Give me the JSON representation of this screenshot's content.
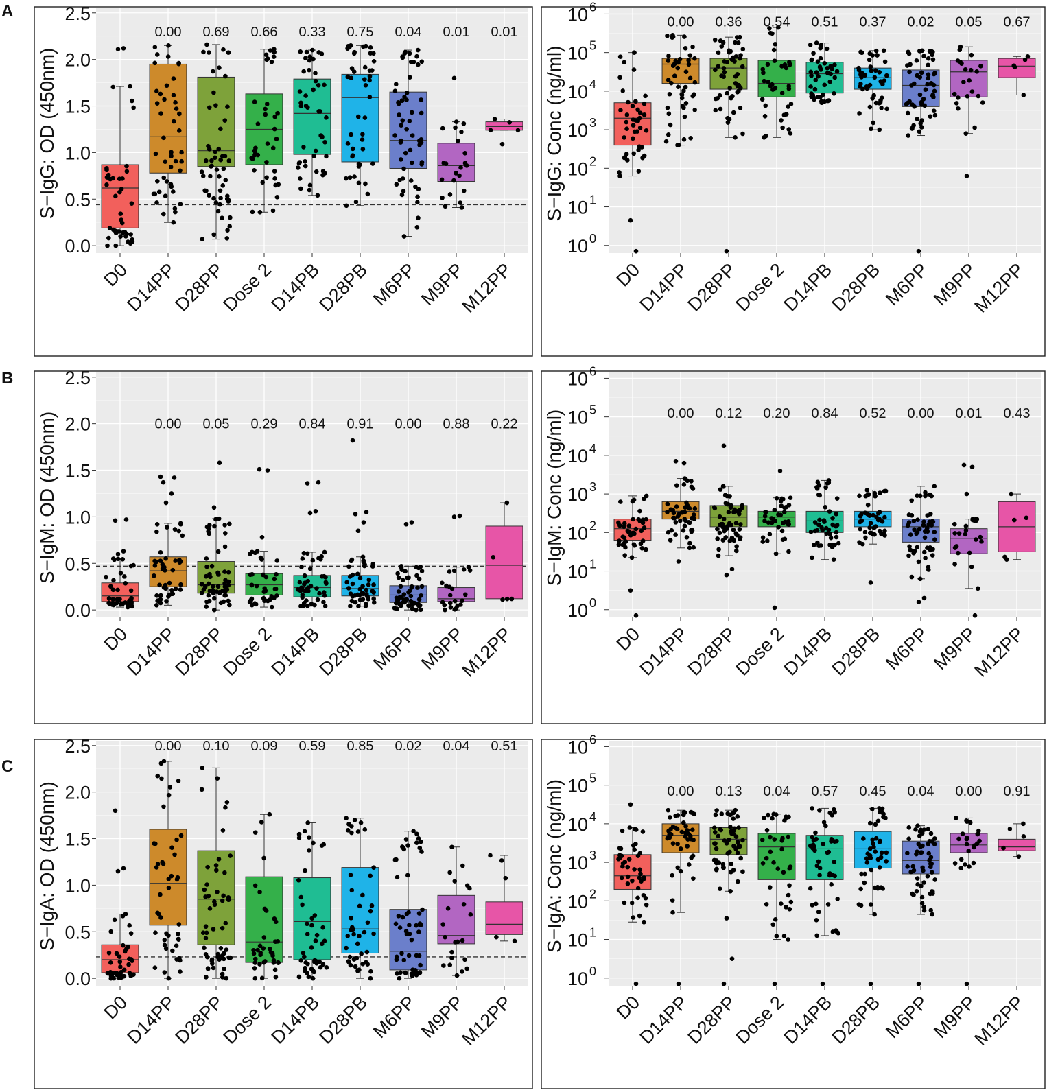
{
  "figure": {
    "row_letters": [
      "A",
      "B",
      "C"
    ],
    "group_colors": [
      "#f2605c",
      "#cd8a2b",
      "#7ea23a",
      "#34b04a",
      "#1fbd93",
      "#1fb3e8",
      "#6b7fcb",
      "#b266c2",
      "#e755a7"
    ]
  },
  "chart_data": [
    {
      "id": "A-left",
      "type": "box",
      "title": "",
      "ylabel": "S−IgG: OD (450nm)",
      "xlabel": "",
      "scale": "linear",
      "ylim": [
        -0.08,
        2.55
      ],
      "yticks": [
        0.0,
        0.5,
        1.0,
        1.5,
        2.0,
        2.5
      ],
      "ytick_labels": [
        "0.0",
        "0.5",
        "1.0",
        "1.5",
        "2.0",
        "2.5"
      ],
      "threshold": 0.44,
      "categories": [
        "D0",
        "D14PP",
        "D28PP",
        "Dose 2",
        "D14PB",
        "D28PB",
        "M6PP",
        "M9PP",
        "M12PP"
      ],
      "pvalues": [
        "",
        "0.00",
        "0.69",
        "0.66",
        "0.33",
        "0.75",
        "0.04",
        "0.01",
        "0.01"
      ],
      "pvalue_level": 2.3,
      "stats": [
        {
          "min": 0.0,
          "q1": 0.19,
          "median": 0.62,
          "q3": 0.87,
          "max": 1.71,
          "n": 42,
          "outliers": [
            2.11,
            2.12
          ]
        },
        {
          "min": 0.25,
          "q1": 0.78,
          "median": 1.17,
          "q3": 1.95,
          "max": 2.15,
          "n": 46,
          "outliers": []
        },
        {
          "min": 0.07,
          "q1": 0.85,
          "median": 1.02,
          "q3": 1.81,
          "max": 2.16,
          "n": 56,
          "outliers": []
        },
        {
          "min": 0.36,
          "q1": 0.87,
          "median": 1.25,
          "q3": 1.63,
          "max": 2.11,
          "n": 38,
          "outliers": []
        },
        {
          "min": 0.54,
          "q1": 0.98,
          "median": 1.42,
          "q3": 1.79,
          "max": 2.1,
          "n": 46,
          "outliers": []
        },
        {
          "min": 0.43,
          "q1": 0.9,
          "median": 1.59,
          "q3": 1.84,
          "max": 2.15,
          "n": 46,
          "outliers": []
        },
        {
          "min": 0.1,
          "q1": 0.83,
          "median": 1.13,
          "q3": 1.65,
          "max": 2.1,
          "n": 56,
          "outliers": []
        },
        {
          "min": 0.41,
          "q1": 0.69,
          "median": 0.86,
          "q3": 1.1,
          "max": 1.33,
          "n": 22,
          "outliers": [
            1.8
          ]
        },
        {
          "min": 1.24,
          "q1": 1.24,
          "median": 1.28,
          "q3": 1.33,
          "max": 1.36,
          "n": 4,
          "outliers": [
            1.09
          ]
        }
      ]
    },
    {
      "id": "A-right",
      "type": "box",
      "title": "",
      "ylabel": "S−IgG: Conc (ng/ml)",
      "xlabel": "",
      "scale": "log10",
      "ylim": [
        -0.2,
        6.15
      ],
      "yticks": [
        0,
        1,
        2,
        3,
        4,
        5,
        6
      ],
      "ytick_labels": [
        "10",
        "10",
        "10",
        "10",
        "10",
        "10",
        "10"
      ],
      "ytick_exponents": [
        "0",
        "1",
        "2",
        "3",
        "4",
        "5",
        "6"
      ],
      "threshold": null,
      "categories": [
        "D0",
        "D14PP",
        "D28PP",
        "Dose 2",
        "D14PB",
        "D28PB",
        "M6PP",
        "M9PP",
        "M12PP"
      ],
      "pvalues": [
        "",
        "0.00",
        "0.36",
        "0.54",
        "0.51",
        "0.37",
        "0.02",
        "0.05",
        "0.67"
      ],
      "pvalue_level": 5.8,
      "stats": [
        {
          "min": 1.8,
          "q1": 2.6,
          "median": 3.3,
          "q3": 3.7,
          "max": 5.0,
          "n": 42,
          "outliers": [
            0.65,
            -0.15
          ]
        },
        {
          "min": 2.6,
          "q1": 4.2,
          "median": 4.7,
          "q3": 4.85,
          "max": 5.45,
          "n": 46,
          "outliers": [
            2.6,
            2.75
          ]
        },
        {
          "min": 2.8,
          "q1": 4.05,
          "median": 4.6,
          "q3": 4.85,
          "max": 5.4,
          "n": 56,
          "outliers": [
            -0.15
          ]
        },
        {
          "min": 2.8,
          "q1": 3.85,
          "median": 4.2,
          "q3": 4.8,
          "max": 5.65,
          "n": 38,
          "outliers": []
        },
        {
          "min": 3.7,
          "q1": 3.95,
          "median": 4.45,
          "q3": 4.75,
          "max": 5.25,
          "n": 46,
          "outliers": []
        },
        {
          "min": 3.0,
          "q1": 4.05,
          "median": 4.35,
          "q3": 4.6,
          "max": 5.05,
          "n": 46,
          "outliers": []
        },
        {
          "min": 2.85,
          "q1": 3.6,
          "median": 4.15,
          "q3": 4.55,
          "max": 5.05,
          "n": 56,
          "outliers": [
            -0.15
          ]
        },
        {
          "min": 2.9,
          "q1": 3.85,
          "median": 4.5,
          "q3": 4.8,
          "max": 5.15,
          "n": 22,
          "outliers": [
            1.8
          ]
        },
        {
          "min": 3.9,
          "q1": 4.35,
          "median": 4.65,
          "q3": 4.85,
          "max": 4.9,
          "n": 5,
          "outliers": []
        }
      ]
    },
    {
      "id": "B-left",
      "type": "box",
      "title": "",
      "ylabel": "S−IgM: OD (450nm)",
      "xlabel": "",
      "scale": "linear",
      "ylim": [
        -0.08,
        2.55
      ],
      "yticks": [
        0.0,
        0.5,
        1.0,
        1.5,
        2.0,
        2.5
      ],
      "ytick_labels": [
        "0.0",
        "0.5",
        "1.0",
        "1.5",
        "2.0",
        "2.5"
      ],
      "threshold": 0.47,
      "categories": [
        "D0",
        "D14PP",
        "D28PP",
        "Dose 2",
        "D14PB",
        "D28PB",
        "M6PP",
        "M9PP",
        "M12PP"
      ],
      "pvalues": [
        "",
        "0.00",
        "0.05",
        "0.29",
        "0.84",
        "0.91",
        "0.00",
        "0.88",
        "0.22"
      ],
      "pvalue_level": 2.0,
      "stats": [
        {
          "min": 0.03,
          "q1": 0.09,
          "median": 0.15,
          "q3": 0.29,
          "max": 0.55,
          "n": 42,
          "outliers": [
            0.6,
            0.63,
            0.96,
            0.97
          ]
        },
        {
          "min": 0.05,
          "q1": 0.25,
          "median": 0.42,
          "q3": 0.57,
          "max": 0.93,
          "n": 46,
          "outliers": [
            1.15,
            1.25,
            1.37,
            1.42,
            1.43
          ]
        },
        {
          "min": 0.0,
          "q1": 0.18,
          "median": 0.27,
          "q3": 0.52,
          "max": 0.98,
          "n": 56,
          "outliers": [
            1.1,
            1.58
          ]
        },
        {
          "min": 0.03,
          "q1": 0.16,
          "median": 0.27,
          "q3": 0.39,
          "max": 0.63,
          "n": 38,
          "outliers": [
            0.78,
            1.5,
            1.51
          ]
        },
        {
          "min": 0.04,
          "q1": 0.14,
          "median": 0.24,
          "q3": 0.37,
          "max": 0.62,
          "n": 46,
          "outliers": [
            1.04,
            1.06,
            1.36,
            1.37
          ]
        },
        {
          "min": 0.04,
          "q1": 0.15,
          "median": 0.23,
          "q3": 0.37,
          "max": 0.57,
          "n": 46,
          "outliers": [
            0.85,
            0.94,
            1.03,
            1.05,
            1.82
          ]
        },
        {
          "min": 0.0,
          "q1": 0.08,
          "median": 0.16,
          "q3": 0.26,
          "max": 0.47,
          "n": 56,
          "outliers": [
            0.92,
            0.94
          ]
        },
        {
          "min": 0.0,
          "q1": 0.09,
          "median": 0.12,
          "q3": 0.24,
          "max": 0.46,
          "n": 22,
          "outliers": [
            1.0,
            1.01
          ]
        },
        {
          "min": 0.11,
          "q1": 0.12,
          "median": 0.48,
          "q3": 0.9,
          "max": 1.15,
          "n": 5,
          "outliers": []
        }
      ]
    },
    {
      "id": "B-right",
      "type": "box",
      "title": "",
      "ylabel": "S−IgM: Conc (ng/ml)",
      "xlabel": "",
      "scale": "log10",
      "ylim": [
        -0.2,
        6.15
      ],
      "yticks": [
        0,
        1,
        2,
        3,
        4,
        5,
        6
      ],
      "ytick_labels": [
        "10",
        "10",
        "10",
        "10",
        "10",
        "10",
        "10"
      ],
      "ytick_exponents": [
        "0",
        "1",
        "2",
        "3",
        "4",
        "5",
        "6"
      ],
      "threshold": null,
      "categories": [
        "D0",
        "D14PP",
        "D28PP",
        "Dose 2",
        "D14PB",
        "D28PB",
        "M6PP",
        "M9PP",
        "M12PP"
      ],
      "pvalues": [
        "",
        "0.00",
        "0.12",
        "0.20",
        "0.84",
        "0.52",
        "0.00",
        "0.01",
        "0.43"
      ],
      "pvalue_level": 5.1,
      "stats": [
        {
          "min": 1.35,
          "q1": 1.8,
          "median": 2.1,
          "q3": 2.35,
          "max": 2.95,
          "n": 42,
          "outliers": [
            0.5,
            -0.15
          ]
        },
        {
          "min": 1.6,
          "q1": 2.35,
          "median": 2.55,
          "q3": 2.8,
          "max": 3.4,
          "n": 46,
          "outliers": [
            1.25,
            3.8,
            3.85
          ]
        },
        {
          "min": 1.4,
          "q1": 2.15,
          "median": 2.4,
          "q3": 2.7,
          "max": 3.2,
          "n": 56,
          "outliers": [
            0.9,
            1.05,
            4.25
          ]
        },
        {
          "min": 1.45,
          "q1": 2.15,
          "median": 2.4,
          "q3": 2.55,
          "max": 2.9,
          "n": 38,
          "outliers": [
            0.05,
            3.6
          ]
        },
        {
          "min": 1.3,
          "q1": 2.0,
          "median": 2.3,
          "q3": 2.55,
          "max": 3.35,
          "n": 46,
          "outliers": []
        },
        {
          "min": 1.7,
          "q1": 2.15,
          "median": 2.35,
          "q3": 2.55,
          "max": 3.1,
          "n": 46,
          "outliers": [
            0.7
          ]
        },
        {
          "min": 0.8,
          "q1": 1.75,
          "median": 2.15,
          "q3": 2.35,
          "max": 3.2,
          "n": 56,
          "outliers": [
            0.2,
            0.3
          ]
        },
        {
          "min": 0.55,
          "q1": 1.45,
          "median": 1.85,
          "q3": 2.1,
          "max": 2.35,
          "n": 22,
          "outliers": [
            3.0,
            3.7,
            3.75,
            -0.15
          ]
        },
        {
          "min": 1.3,
          "q1": 1.5,
          "median": 2.15,
          "q3": 2.8,
          "max": 3.0,
          "n": 5,
          "outliers": []
        }
      ]
    },
    {
      "id": "C-left",
      "type": "box",
      "title": "",
      "ylabel": "S−IgA: OD (450nm)",
      "xlabel": "",
      "scale": "linear",
      "ylim": [
        -0.08,
        2.55
      ],
      "yticks": [
        0.0,
        0.5,
        1.0,
        1.5,
        2.0,
        2.5
      ],
      "ytick_labels": [
        "0.0",
        "0.5",
        "1.0",
        "1.5",
        "2.0",
        "2.5"
      ],
      "threshold": 0.23,
      "categories": [
        "D0",
        "D14PP",
        "D28PP",
        "Dose 2",
        "D14PB",
        "D28PB",
        "M6PP",
        "M9PP",
        "M12PP"
      ],
      "pvalues": [
        "",
        "0.00",
        "0.10",
        "0.09",
        "0.59",
        "0.85",
        "0.02",
        "0.04",
        "0.51"
      ],
      "pvalue_level": 2.5,
      "stats": [
        {
          "min": 0.0,
          "q1": 0.06,
          "median": 0.2,
          "q3": 0.36,
          "max": 0.69,
          "n": 42,
          "outliers": [
            1.15,
            1.18,
            1.8
          ]
        },
        {
          "min": 0.0,
          "q1": 0.57,
          "median": 1.02,
          "q3": 1.6,
          "max": 2.33,
          "n": 46,
          "outliers": []
        },
        {
          "min": 0.0,
          "q1": 0.36,
          "median": 0.85,
          "q3": 1.37,
          "max": 2.26,
          "n": 56,
          "outliers": []
        },
        {
          "min": 0.0,
          "q1": 0.17,
          "median": 0.39,
          "q3": 1.09,
          "max": 1.76,
          "n": 38,
          "outliers": []
        },
        {
          "min": 0.0,
          "q1": 0.2,
          "median": 0.61,
          "q3": 1.08,
          "max": 1.67,
          "n": 46,
          "outliers": []
        },
        {
          "min": 0.0,
          "q1": 0.27,
          "median": 0.53,
          "q3": 1.19,
          "max": 1.72,
          "n": 46,
          "outliers": []
        },
        {
          "min": 0.0,
          "q1": 0.09,
          "median": 0.29,
          "q3": 0.74,
          "max": 1.58,
          "n": 56,
          "outliers": []
        },
        {
          "min": 0.03,
          "q1": 0.37,
          "median": 0.46,
          "q3": 0.89,
          "max": 1.41,
          "n": 22,
          "outliers": []
        },
        {
          "min": 0.4,
          "q1": 0.47,
          "median": 0.58,
          "q3": 0.82,
          "max": 1.32,
          "n": 5,
          "outliers": []
        }
      ]
    },
    {
      "id": "C-right",
      "type": "box",
      "title": "",
      "ylabel": "S−IgA: Conc (ng/ml)",
      "xlabel": "",
      "scale": "log10",
      "ylim": [
        -0.2,
        6.15
      ],
      "yticks": [
        0,
        1,
        2,
        3,
        4,
        5,
        6
      ],
      "ytick_labels": [
        "10",
        "10",
        "10",
        "10",
        "10",
        "10",
        "10"
      ],
      "ytick_exponents": [
        "0",
        "1",
        "2",
        "3",
        "4",
        "5",
        "6"
      ],
      "threshold": null,
      "categories": [
        "D0",
        "D14PP",
        "D28PP",
        "Dose 2",
        "D14PB",
        "D28PB",
        "M6PP",
        "M9PP",
        "M12PP"
      ],
      "pvalues": [
        "",
        "0.00",
        "0.13",
        "0.04",
        "0.57",
        "0.45",
        "0.04",
        "0.00",
        "0.91"
      ],
      "pvalue_level": 4.85,
      "stats": [
        {
          "min": 1.45,
          "q1": 2.3,
          "median": 2.65,
          "q3": 3.2,
          "max": 3.9,
          "n": 42,
          "outliers": [
            4.5,
            -0.15
          ]
        },
        {
          "min": 1.7,
          "q1": 3.25,
          "median": 3.7,
          "q3": 4.0,
          "max": 4.35,
          "n": 46,
          "outliers": [
            -0.15
          ]
        },
        {
          "min": 2.25,
          "q1": 3.2,
          "median": 3.6,
          "q3": 3.9,
          "max": 4.35,
          "n": 56,
          "outliers": [
            1.55,
            0.5,
            -0.15
          ]
        },
        {
          "min": 1.0,
          "q1": 2.55,
          "median": 3.4,
          "q3": 3.75,
          "max": 4.25,
          "n": 38,
          "outliers": [
            -0.15
          ]
        },
        {
          "min": 1.1,
          "q1": 2.55,
          "median": 3.35,
          "q3": 3.7,
          "max": 4.4,
          "n": 46,
          "outliers": [
            -0.15
          ]
        },
        {
          "min": 1.65,
          "q1": 2.85,
          "median": 3.35,
          "q3": 3.8,
          "max": 4.4,
          "n": 46,
          "outliers": [
            -0.15
          ]
        },
        {
          "min": 1.65,
          "q1": 2.7,
          "median": 3.05,
          "q3": 3.55,
          "max": 3.95,
          "n": 56,
          "outliers": [
            -0.15
          ]
        },
        {
          "min": 2.85,
          "q1": 3.25,
          "median": 3.45,
          "q3": 3.75,
          "max": 4.15,
          "n": 22,
          "outliers": [
            -0.15
          ]
        },
        {
          "min": 3.15,
          "q1": 3.3,
          "median": 3.4,
          "q3": 3.6,
          "max": 4.0,
          "n": 5,
          "outliers": []
        }
      ]
    }
  ]
}
